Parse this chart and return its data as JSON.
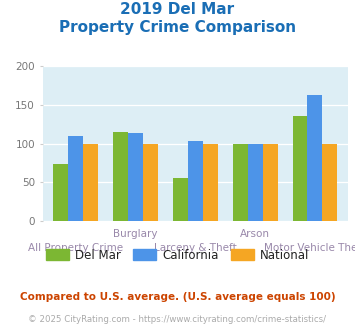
{
  "title_line1": "2019 Del Mar",
  "title_line2": "Property Crime Comparison",
  "categories": [
    "All Property Crime",
    "Burglary",
    "Larceny & Theft",
    "Arson",
    "Motor Vehicle Theft"
  ],
  "top_labels": [
    "",
    "Burglary",
    "",
    "Arson",
    ""
  ],
  "bottom_labels": [
    "All Property Crime",
    "",
    "Larceny & Theft",
    "",
    "Motor Vehicle Theft"
  ],
  "del_mar": [
    73,
    115,
    56,
    100,
    135
  ],
  "california": [
    110,
    113,
    103,
    100,
    163
  ],
  "national": [
    100,
    100,
    100,
    100,
    100
  ],
  "del_mar_color": "#7cb733",
  "california_color": "#4d94e8",
  "national_color": "#f5a623",
  "title_color": "#1a6eb5",
  "bg_color": "#ddeef5",
  "ylim": [
    0,
    200
  ],
  "yticks": [
    0,
    50,
    100,
    150,
    200
  ],
  "legend_labels": [
    "Del Mar",
    "California",
    "National"
  ],
  "footnote1": "Compared to U.S. average. (U.S. average equals 100)",
  "footnote2": "© 2025 CityRating.com - https://www.cityrating.com/crime-statistics/",
  "footnote1_color": "#cc4400",
  "footnote2_color": "#aaaaaa",
  "label_color": "#9988aa",
  "tick_color": "#777777"
}
